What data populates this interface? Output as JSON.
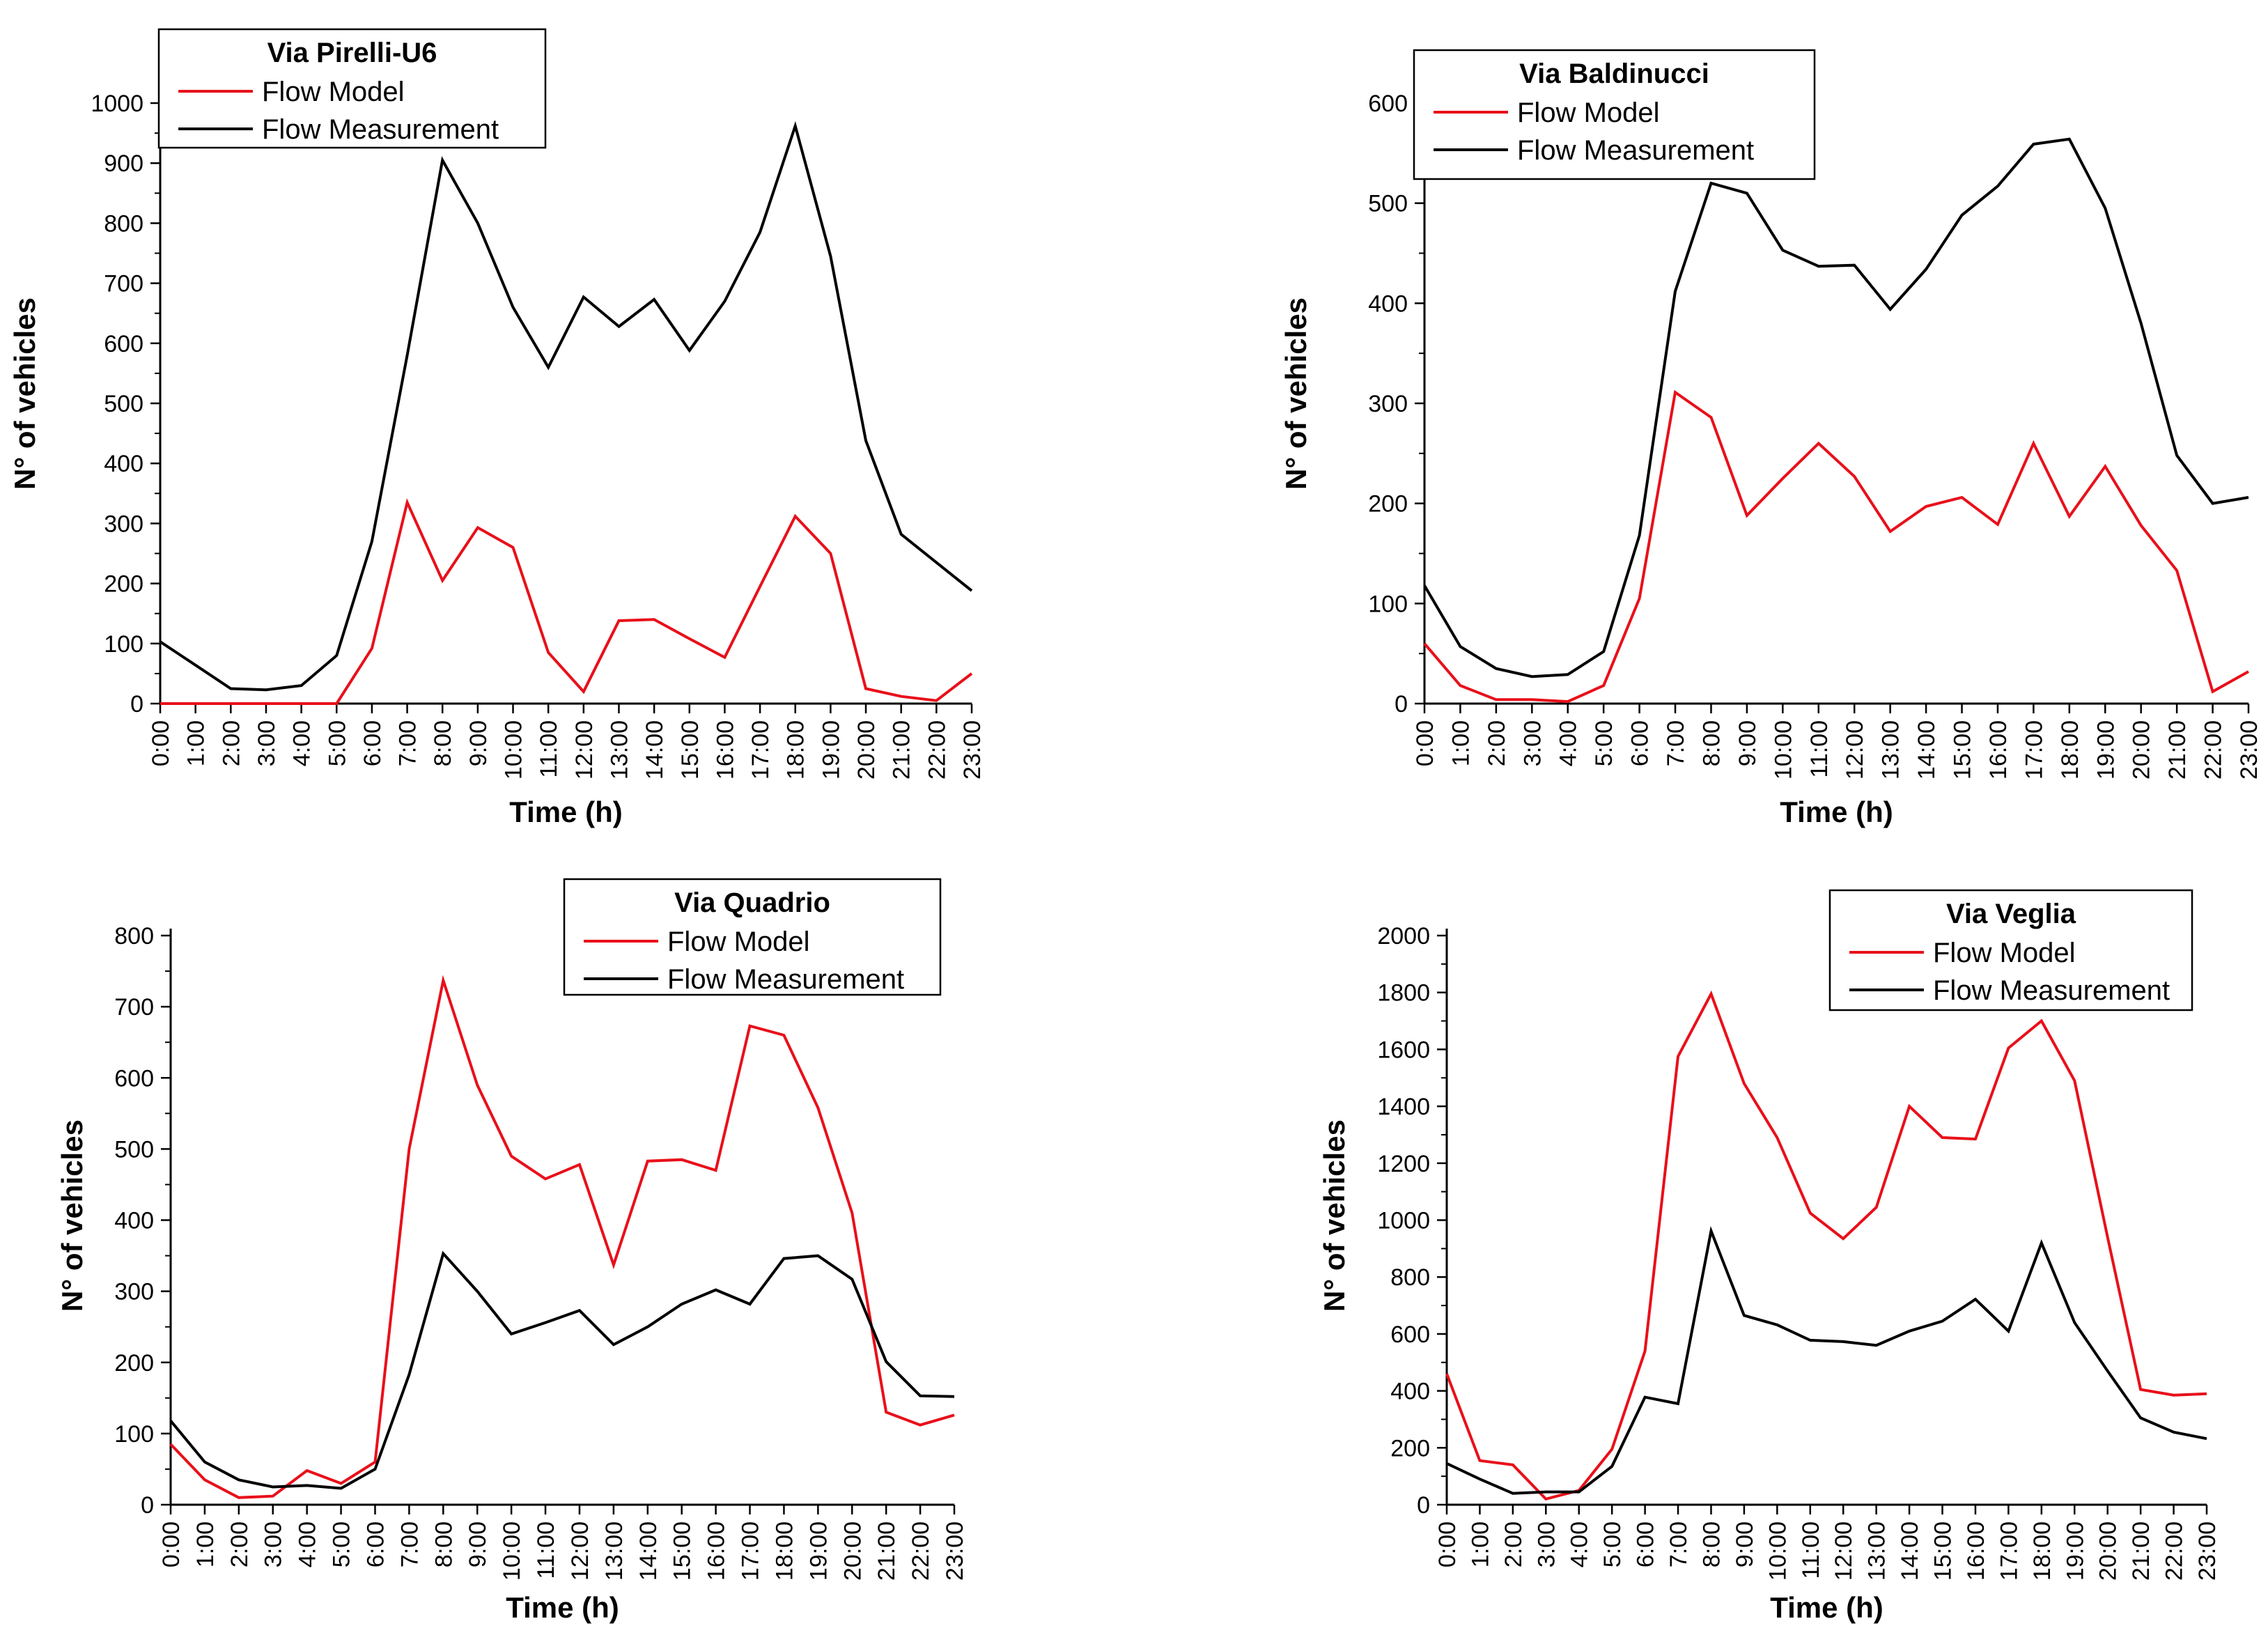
{
  "chart_data": [
    {
      "type": "line",
      "title": "Via Pirelli-U6",
      "xlabel": "Time (h)",
      "ylabel": "N° of vehicles",
      "categories": [
        "0:00",
        "1:00",
        "2:00",
        "3:00",
        "4:00",
        "5:00",
        "6:00",
        "7:00",
        "8:00",
        "9:00",
        "10:00",
        "11:00",
        "12:00",
        "13:00",
        "14:00",
        "15:00",
        "16:00",
        "17:00",
        "18:00",
        "19:00",
        "20:00",
        "21:00",
        "22:00",
        "23:00"
      ],
      "ylim": [
        0,
        1000
      ],
      "yticks": [
        0,
        100,
        200,
        300,
        400,
        500,
        600,
        700,
        800,
        900,
        1000
      ],
      "legend_position": "top-left",
      "series": [
        {
          "name": "Flow Model",
          "color": "#e8101a",
          "values": [
            0,
            0,
            0,
            0,
            0,
            0,
            92,
            335,
            205,
            293,
            260,
            85,
            20,
            138,
            140,
            108,
            77,
            195,
            312,
            250,
            25,
            12,
            5,
            50
          ]
        },
        {
          "name": "Flow Measurement",
          "color": "#000000",
          "values": [
            103,
            64,
            25,
            23,
            30,
            80,
            270,
            580,
            905,
            800,
            660,
            560,
            677,
            628,
            673,
            588,
            670,
            785,
            962,
            745,
            438,
            282,
            235,
            188
          ]
        }
      ]
    },
    {
      "type": "line",
      "title": "Via Baldinucci",
      "xlabel": "Time (h)",
      "ylabel": "N° of vehicles",
      "categories": [
        "0:00",
        "1:00",
        "2:00",
        "3:00",
        "4:00",
        "5:00",
        "6:00",
        "7:00",
        "8:00",
        "9:00",
        "10:00",
        "11:00",
        "12:00",
        "13:00",
        "14:00",
        "15:00",
        "16:00",
        "17:00",
        "18:00",
        "19:00",
        "20:00",
        "21:00",
        "22:00",
        "23:00"
      ],
      "ylim": [
        0,
        600
      ],
      "yticks": [
        0,
        100,
        200,
        300,
        400,
        500,
        600
      ],
      "legend_position": "top",
      "series": [
        {
          "name": "Flow Model",
          "color": "#e8101a",
          "values": [
            60,
            18,
            4,
            4,
            2,
            18,
            105,
            311,
            286,
            188,
            225,
            260,
            227,
            172,
            197,
            206,
            179,
            260,
            187,
            237,
            178,
            133,
            12,
            32
          ]
        },
        {
          "name": "Flow Measurement",
          "color": "#000000",
          "values": [
            118,
            57,
            35,
            27,
            29,
            52,
            168,
            412,
            520,
            510,
            453,
            437,
            438,
            394,
            434,
            488,
            517,
            559,
            564,
            495,
            380,
            248,
            200,
            206
          ]
        }
      ]
    },
    {
      "type": "line",
      "title": "Via Quadrio",
      "xlabel": "Time (h)",
      "ylabel": "N° of vehicles",
      "categories": [
        "0:00",
        "1:00",
        "2:00",
        "3:00",
        "4:00",
        "5:00",
        "6:00",
        "7:00",
        "8:00",
        "9:00",
        "10:00",
        "11:00",
        "12:00",
        "13:00",
        "14:00",
        "15:00",
        "16:00",
        "17:00",
        "18:00",
        "19:00",
        "20:00",
        "21:00",
        "22:00",
        "23:00"
      ],
      "ylim": [
        0,
        800
      ],
      "yticks": [
        0,
        100,
        200,
        300,
        400,
        500,
        600,
        700,
        800
      ],
      "legend_position": "top-right",
      "series": [
        {
          "name": "Flow Model",
          "color": "#e8101a",
          "values": [
            85,
            35,
            10,
            12,
            48,
            30,
            60,
            500,
            737,
            590,
            490,
            458,
            478,
            337,
            483,
            485,
            470,
            673,
            660,
            558,
            410,
            130,
            112,
            126
          ]
        },
        {
          "name": "Flow Measurement",
          "color": "#000000",
          "values": [
            118,
            60,
            35,
            25,
            27,
            23,
            50,
            183,
            353,
            300,
            240,
            256,
            273,
            225,
            250,
            282,
            302,
            282,
            346,
            350,
            317,
            201,
            153,
            152
          ]
        }
      ]
    },
    {
      "type": "line",
      "title": "Via Veglia",
      "xlabel": "Time (h)",
      "ylabel": "N° of vehicles",
      "categories": [
        "0:00",
        "1:00",
        "2:00",
        "3:00",
        "4:00",
        "5:00",
        "6:00",
        "7:00",
        "8:00",
        "9:00",
        "10:00",
        "11:00",
        "12:00",
        "13:00",
        "14:00",
        "15:00",
        "16:00",
        "17:00",
        "18:00",
        "19:00",
        "20:00",
        "21:00",
        "22:00",
        "23:00"
      ],
      "ylim": [
        0,
        2000
      ],
      "yticks": [
        0,
        200,
        400,
        600,
        800,
        1000,
        1200,
        1400,
        1600,
        1800,
        2000
      ],
      "legend_position": "top-right",
      "series": [
        {
          "name": "Flow Model",
          "color": "#e8101a",
          "values": [
            460,
            155,
            140,
            20,
            50,
            195,
            540,
            1575,
            1795,
            1480,
            1290,
            1025,
            935,
            1045,
            1400,
            1290,
            1285,
            1605,
            1700,
            1490,
            940,
            405,
            385,
            390
          ]
        },
        {
          "name": "Flow Measurement",
          "color": "#000000",
          "values": [
            145,
            90,
            40,
            45,
            45,
            135,
            378,
            355,
            962,
            665,
            632,
            578,
            573,
            560,
            610,
            645,
            722,
            610,
            920,
            640,
            470,
            305,
            255,
            232
          ]
        }
      ]
    }
  ]
}
